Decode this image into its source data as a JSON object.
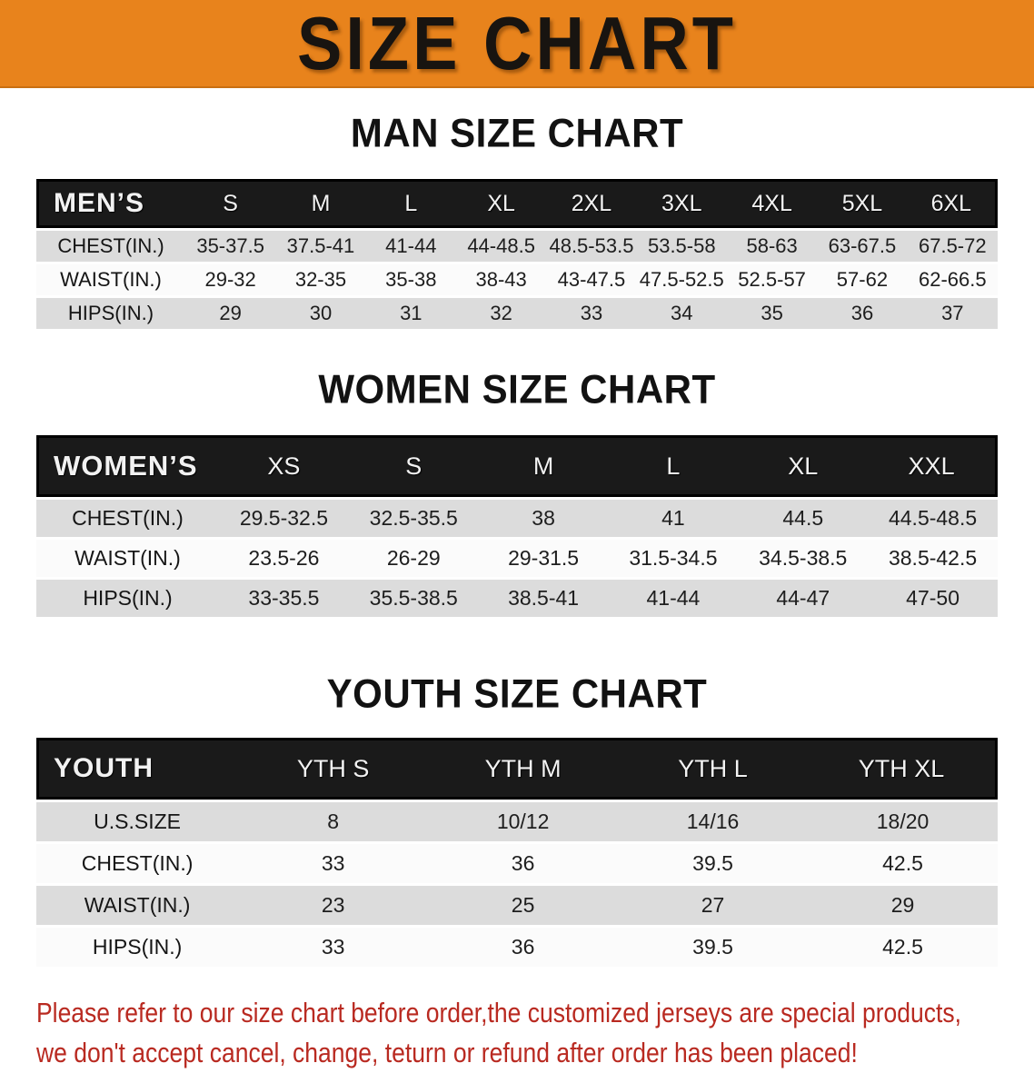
{
  "banner": {
    "title": "SIZE CHART",
    "bg_color": "#E8831C",
    "text_color": "#181410"
  },
  "colors": {
    "table_header_bg": "#1A1A1A",
    "table_header_text": "#F2F2F2",
    "row_alt_gray": "#DCDCDC",
    "row_white": "#FBFBFB",
    "disclaimer_red": "#B92A21"
  },
  "sections": [
    {
      "id": "men",
      "heading": "MAN SIZE CHART",
      "corner_label": "MEN’S",
      "columns": [
        "S",
        "M",
        "L",
        "XL",
        "2XL",
        "3XL",
        "4XL",
        "5XL",
        "6XL"
      ],
      "rows": [
        {
          "label": "CHEST(IN.)",
          "values": [
            "35-37.5",
            "37.5-41",
            "41-44",
            "44-48.5",
            "48.5-53.5",
            "53.5-58",
            "58-63",
            "63-67.5",
            "67.5-72"
          ]
        },
        {
          "label": "WAIST(IN.)",
          "values": [
            "29-32",
            "32-35",
            "35-38",
            "38-43",
            "43-47.5",
            "47.5-52.5",
            "52.5-57",
            "57-62",
            "62-66.5"
          ]
        },
        {
          "label": "HIPS(IN.)",
          "values": [
            "29",
            "30",
            "31",
            "32",
            "33",
            "34",
            "35",
            "36",
            "37"
          ]
        }
      ]
    },
    {
      "id": "women",
      "heading": "WOMEN SIZE CHART",
      "corner_label": "WOMEN’S",
      "columns": [
        "XS",
        "S",
        "M",
        "L",
        "XL",
        "XXL"
      ],
      "rows": [
        {
          "label": "CHEST(IN.)",
          "values": [
            "29.5-32.5",
            "32.5-35.5",
            "38",
            "41",
            "44.5",
            "44.5-48.5"
          ]
        },
        {
          "label": "WAIST(IN.)",
          "values": [
            "23.5-26",
            "26-29",
            "29-31.5",
            "31.5-34.5",
            "34.5-38.5",
            "38.5-42.5"
          ]
        },
        {
          "label": "HIPS(IN.)",
          "values": [
            "33-35.5",
            "35.5-38.5",
            "38.5-41",
            "41-44",
            "44-47",
            "47-50"
          ]
        }
      ]
    },
    {
      "id": "youth",
      "heading": "YOUTH SIZE CHART",
      "corner_label": "YOUTH",
      "columns": [
        "YTH S",
        "YTH M",
        "YTH L",
        "YTH XL"
      ],
      "rows": [
        {
          "label": "U.S.SIZE",
          "values": [
            "8",
            "10/12",
            "14/16",
            "18/20"
          ]
        },
        {
          "label": "CHEST(IN.)",
          "values": [
            "33",
            "36",
            "39.5",
            "42.5"
          ]
        },
        {
          "label": "WAIST(IN.)",
          "values": [
            "23",
            "25",
            "27",
            "29"
          ]
        },
        {
          "label": "HIPS(IN.)",
          "values": [
            "33",
            "36",
            "39.5",
            "42.5"
          ]
        }
      ]
    }
  ],
  "disclaimer": {
    "line1": "Please refer to our size chart before order,the customized jerseys are special products,",
    "line2": "we don't accept cancel, change, teturn or refund after order has been placed!"
  }
}
